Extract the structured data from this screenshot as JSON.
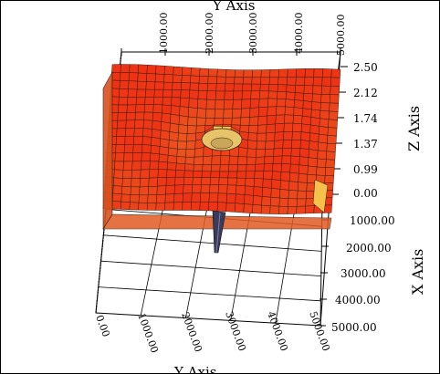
{
  "chart_data": {
    "type": "surface",
    "title": "",
    "x_axis": {
      "label": "X Axis",
      "ticks": [
        "1000.00",
        "2000.00",
        "3000.00",
        "4000.00",
        "5000.00"
      ]
    },
    "y_axis": {
      "label": "Y Axis",
      "ticks_top": [
        "1000.00",
        "2000.00",
        "3000.00",
        "4000.00",
        "5000.00"
      ],
      "ticks_bottom": [
        "0.00",
        "1000.00",
        "2000.00",
        "3000.00",
        "4000.00",
        "5000.00"
      ]
    },
    "z_axis": {
      "label": "Z Axis",
      "ticks": [
        "2.50",
        "2.12",
        "1.74",
        "1.37",
        "0.99",
        "0.00"
      ],
      "range": [
        0,
        2.5
      ]
    },
    "grid": true,
    "features": {
      "surface_color_low": "#e8501a",
      "surface_color_mid": "#f07a2a",
      "surface_color_high": "#f6c14a",
      "mesh_color": "#2a1a10",
      "spike_color": "#3a3b5a"
    }
  }
}
